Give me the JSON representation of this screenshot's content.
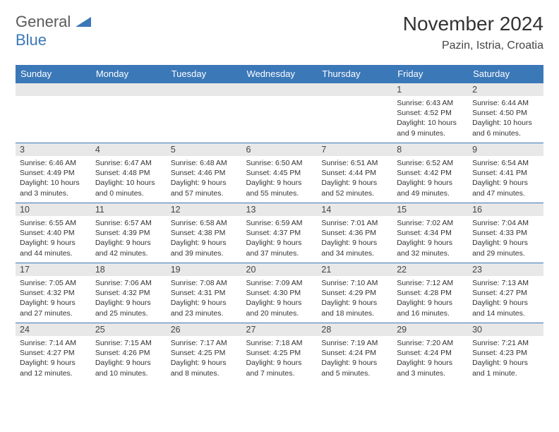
{
  "logo": {
    "text1": "General",
    "text2": "Blue"
  },
  "title": "November 2024",
  "location": "Pazin, Istria, Croatia",
  "weekdays": [
    "Sunday",
    "Monday",
    "Tuesday",
    "Wednesday",
    "Thursday",
    "Friday",
    "Saturday"
  ],
  "colors": {
    "header_bg": "#3b78b8",
    "header_text": "#ffffff",
    "daynum_bg": "#e8e8e8",
    "border": "#3b78b8",
    "text": "#333333"
  },
  "fonts": {
    "title_size": 28,
    "header_size": 13,
    "day_text_size": 10.5
  },
  "weeks": [
    [
      {
        "n": "",
        "sr": "",
        "ss": "",
        "dl": ""
      },
      {
        "n": "",
        "sr": "",
        "ss": "",
        "dl": ""
      },
      {
        "n": "",
        "sr": "",
        "ss": "",
        "dl": ""
      },
      {
        "n": "",
        "sr": "",
        "ss": "",
        "dl": ""
      },
      {
        "n": "",
        "sr": "",
        "ss": "",
        "dl": ""
      },
      {
        "n": "1",
        "sr": "Sunrise: 6:43 AM",
        "ss": "Sunset: 4:52 PM",
        "dl": "Daylight: 10 hours and 9 minutes."
      },
      {
        "n": "2",
        "sr": "Sunrise: 6:44 AM",
        "ss": "Sunset: 4:50 PM",
        "dl": "Daylight: 10 hours and 6 minutes."
      }
    ],
    [
      {
        "n": "3",
        "sr": "Sunrise: 6:46 AM",
        "ss": "Sunset: 4:49 PM",
        "dl": "Daylight: 10 hours and 3 minutes."
      },
      {
        "n": "4",
        "sr": "Sunrise: 6:47 AM",
        "ss": "Sunset: 4:48 PM",
        "dl": "Daylight: 10 hours and 0 minutes."
      },
      {
        "n": "5",
        "sr": "Sunrise: 6:48 AM",
        "ss": "Sunset: 4:46 PM",
        "dl": "Daylight: 9 hours and 57 minutes."
      },
      {
        "n": "6",
        "sr": "Sunrise: 6:50 AM",
        "ss": "Sunset: 4:45 PM",
        "dl": "Daylight: 9 hours and 55 minutes."
      },
      {
        "n": "7",
        "sr": "Sunrise: 6:51 AM",
        "ss": "Sunset: 4:44 PM",
        "dl": "Daylight: 9 hours and 52 minutes."
      },
      {
        "n": "8",
        "sr": "Sunrise: 6:52 AM",
        "ss": "Sunset: 4:42 PM",
        "dl": "Daylight: 9 hours and 49 minutes."
      },
      {
        "n": "9",
        "sr": "Sunrise: 6:54 AM",
        "ss": "Sunset: 4:41 PM",
        "dl": "Daylight: 9 hours and 47 minutes."
      }
    ],
    [
      {
        "n": "10",
        "sr": "Sunrise: 6:55 AM",
        "ss": "Sunset: 4:40 PM",
        "dl": "Daylight: 9 hours and 44 minutes."
      },
      {
        "n": "11",
        "sr": "Sunrise: 6:57 AM",
        "ss": "Sunset: 4:39 PM",
        "dl": "Daylight: 9 hours and 42 minutes."
      },
      {
        "n": "12",
        "sr": "Sunrise: 6:58 AM",
        "ss": "Sunset: 4:38 PM",
        "dl": "Daylight: 9 hours and 39 minutes."
      },
      {
        "n": "13",
        "sr": "Sunrise: 6:59 AM",
        "ss": "Sunset: 4:37 PM",
        "dl": "Daylight: 9 hours and 37 minutes."
      },
      {
        "n": "14",
        "sr": "Sunrise: 7:01 AM",
        "ss": "Sunset: 4:36 PM",
        "dl": "Daylight: 9 hours and 34 minutes."
      },
      {
        "n": "15",
        "sr": "Sunrise: 7:02 AM",
        "ss": "Sunset: 4:34 PM",
        "dl": "Daylight: 9 hours and 32 minutes."
      },
      {
        "n": "16",
        "sr": "Sunrise: 7:04 AM",
        "ss": "Sunset: 4:33 PM",
        "dl": "Daylight: 9 hours and 29 minutes."
      }
    ],
    [
      {
        "n": "17",
        "sr": "Sunrise: 7:05 AM",
        "ss": "Sunset: 4:32 PM",
        "dl": "Daylight: 9 hours and 27 minutes."
      },
      {
        "n": "18",
        "sr": "Sunrise: 7:06 AM",
        "ss": "Sunset: 4:32 PM",
        "dl": "Daylight: 9 hours and 25 minutes."
      },
      {
        "n": "19",
        "sr": "Sunrise: 7:08 AM",
        "ss": "Sunset: 4:31 PM",
        "dl": "Daylight: 9 hours and 23 minutes."
      },
      {
        "n": "20",
        "sr": "Sunrise: 7:09 AM",
        "ss": "Sunset: 4:30 PM",
        "dl": "Daylight: 9 hours and 20 minutes."
      },
      {
        "n": "21",
        "sr": "Sunrise: 7:10 AM",
        "ss": "Sunset: 4:29 PM",
        "dl": "Daylight: 9 hours and 18 minutes."
      },
      {
        "n": "22",
        "sr": "Sunrise: 7:12 AM",
        "ss": "Sunset: 4:28 PM",
        "dl": "Daylight: 9 hours and 16 minutes."
      },
      {
        "n": "23",
        "sr": "Sunrise: 7:13 AM",
        "ss": "Sunset: 4:27 PM",
        "dl": "Daylight: 9 hours and 14 minutes."
      }
    ],
    [
      {
        "n": "24",
        "sr": "Sunrise: 7:14 AM",
        "ss": "Sunset: 4:27 PM",
        "dl": "Daylight: 9 hours and 12 minutes."
      },
      {
        "n": "25",
        "sr": "Sunrise: 7:15 AM",
        "ss": "Sunset: 4:26 PM",
        "dl": "Daylight: 9 hours and 10 minutes."
      },
      {
        "n": "26",
        "sr": "Sunrise: 7:17 AM",
        "ss": "Sunset: 4:25 PM",
        "dl": "Daylight: 9 hours and 8 minutes."
      },
      {
        "n": "27",
        "sr": "Sunrise: 7:18 AM",
        "ss": "Sunset: 4:25 PM",
        "dl": "Daylight: 9 hours and 7 minutes."
      },
      {
        "n": "28",
        "sr": "Sunrise: 7:19 AM",
        "ss": "Sunset: 4:24 PM",
        "dl": "Daylight: 9 hours and 5 minutes."
      },
      {
        "n": "29",
        "sr": "Sunrise: 7:20 AM",
        "ss": "Sunset: 4:24 PM",
        "dl": "Daylight: 9 hours and 3 minutes."
      },
      {
        "n": "30",
        "sr": "Sunrise: 7:21 AM",
        "ss": "Sunset: 4:23 PM",
        "dl": "Daylight: 9 hours and 1 minute."
      }
    ]
  ]
}
